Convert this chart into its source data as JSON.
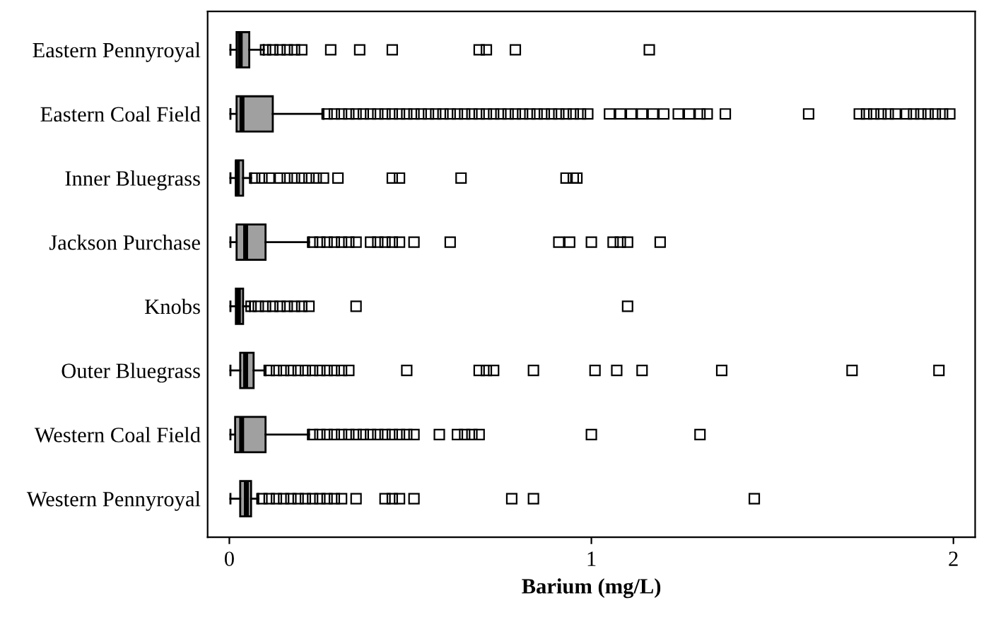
{
  "chart_data": {
    "type": "box",
    "orientation": "horizontal",
    "xlabel": "Barium (mg/L)",
    "categories": [
      "Eastern Pennyroyal",
      "Eastern Coal Field",
      "Inner Bluegrass",
      "Jackson Purchase",
      "Knobs",
      "Outer Bluegrass",
      "Western Coal Field",
      "Western Pennyroyal"
    ],
    "color": "#a0a0a0",
    "marker": "square",
    "grid": false,
    "xlim": [
      -0.06,
      2.06
    ],
    "xticks": [
      0,
      1,
      2
    ],
    "boxes": [
      {
        "low": 0.003,
        "q1": 0.02,
        "median": 0.03,
        "q3": 0.055,
        "high": 0.095,
        "outliers": [
          0.1,
          0.12,
          0.14,
          0.16,
          0.18,
          0.2,
          0.28,
          0.36,
          0.45,
          0.69,
          0.71,
          0.79,
          1.16
        ]
      },
      {
        "low": 0.003,
        "q1": 0.02,
        "median": 0.035,
        "q3": 0.12,
        "high": 0.26,
        "outliers": [
          0.27,
          0.29,
          0.31,
          0.33,
          0.35,
          0.37,
          0.39,
          0.41,
          0.43,
          0.45,
          0.47,
          0.49,
          0.51,
          0.53,
          0.55,
          0.57,
          0.59,
          0.61,
          0.63,
          0.65,
          0.67,
          0.69,
          0.71,
          0.73,
          0.75,
          0.77,
          0.79,
          0.81,
          0.83,
          0.85,
          0.87,
          0.89,
          0.91,
          0.93,
          0.95,
          0.97,
          0.99,
          1.05,
          1.08,
          1.11,
          1.14,
          1.17,
          1.2,
          1.24,
          1.27,
          1.3,
          1.32,
          1.37,
          1.6,
          1.74,
          1.76,
          1.78,
          1.8,
          1.82,
          1.84,
          1.87,
          1.89,
          1.91,
          1.93,
          1.95,
          1.97,
          1.99
        ]
      },
      {
        "low": 0.003,
        "q1": 0.018,
        "median": 0.022,
        "q3": 0.038,
        "high": 0.06,
        "outliers": [
          0.07,
          0.09,
          0.11,
          0.14,
          0.16,
          0.18,
          0.2,
          0.22,
          0.24,
          0.26,
          0.3,
          0.45,
          0.47,
          0.64,
          0.93,
          0.95,
          0.96
        ]
      },
      {
        "low": 0.003,
        "q1": 0.02,
        "median": 0.045,
        "q3": 0.1,
        "high": 0.22,
        "outliers": [
          0.23,
          0.25,
          0.27,
          0.29,
          0.31,
          0.33,
          0.35,
          0.39,
          0.41,
          0.43,
          0.45,
          0.47,
          0.51,
          0.61,
          0.91,
          0.94,
          1.0,
          1.06,
          1.08,
          1.1,
          1.19
        ]
      },
      {
        "low": 0.003,
        "q1": 0.018,
        "median": 0.025,
        "q3": 0.038,
        "high": 0.057,
        "outliers": [
          0.06,
          0.08,
          0.1,
          0.12,
          0.14,
          0.16,
          0.18,
          0.2,
          0.22,
          0.35,
          1.1
        ]
      },
      {
        "low": 0.003,
        "q1": 0.03,
        "median": 0.045,
        "q3": 0.067,
        "high": 0.1,
        "outliers": [
          0.11,
          0.13,
          0.15,
          0.17,
          0.19,
          0.21,
          0.23,
          0.25,
          0.27,
          0.29,
          0.31,
          0.33,
          0.49,
          0.69,
          0.71,
          0.73,
          0.84,
          1.01,
          1.07,
          1.14,
          1.36,
          1.72,
          1.96
        ]
      },
      {
        "low": 0.003,
        "q1": 0.016,
        "median": 0.034,
        "q3": 0.1,
        "high": 0.22,
        "outliers": [
          0.23,
          0.25,
          0.27,
          0.29,
          0.31,
          0.33,
          0.35,
          0.37,
          0.39,
          0.41,
          0.43,
          0.45,
          0.47,
          0.49,
          0.51,
          0.58,
          0.63,
          0.65,
          0.67,
          0.69,
          1.0,
          1.3
        ]
      },
      {
        "low": 0.003,
        "q1": 0.03,
        "median": 0.047,
        "q3": 0.06,
        "high": 0.08,
        "outliers": [
          0.09,
          0.11,
          0.13,
          0.15,
          0.17,
          0.19,
          0.21,
          0.23,
          0.25,
          0.27,
          0.29,
          0.31,
          0.35,
          0.43,
          0.45,
          0.47,
          0.51,
          0.78,
          0.84,
          1.45
        ]
      }
    ]
  }
}
